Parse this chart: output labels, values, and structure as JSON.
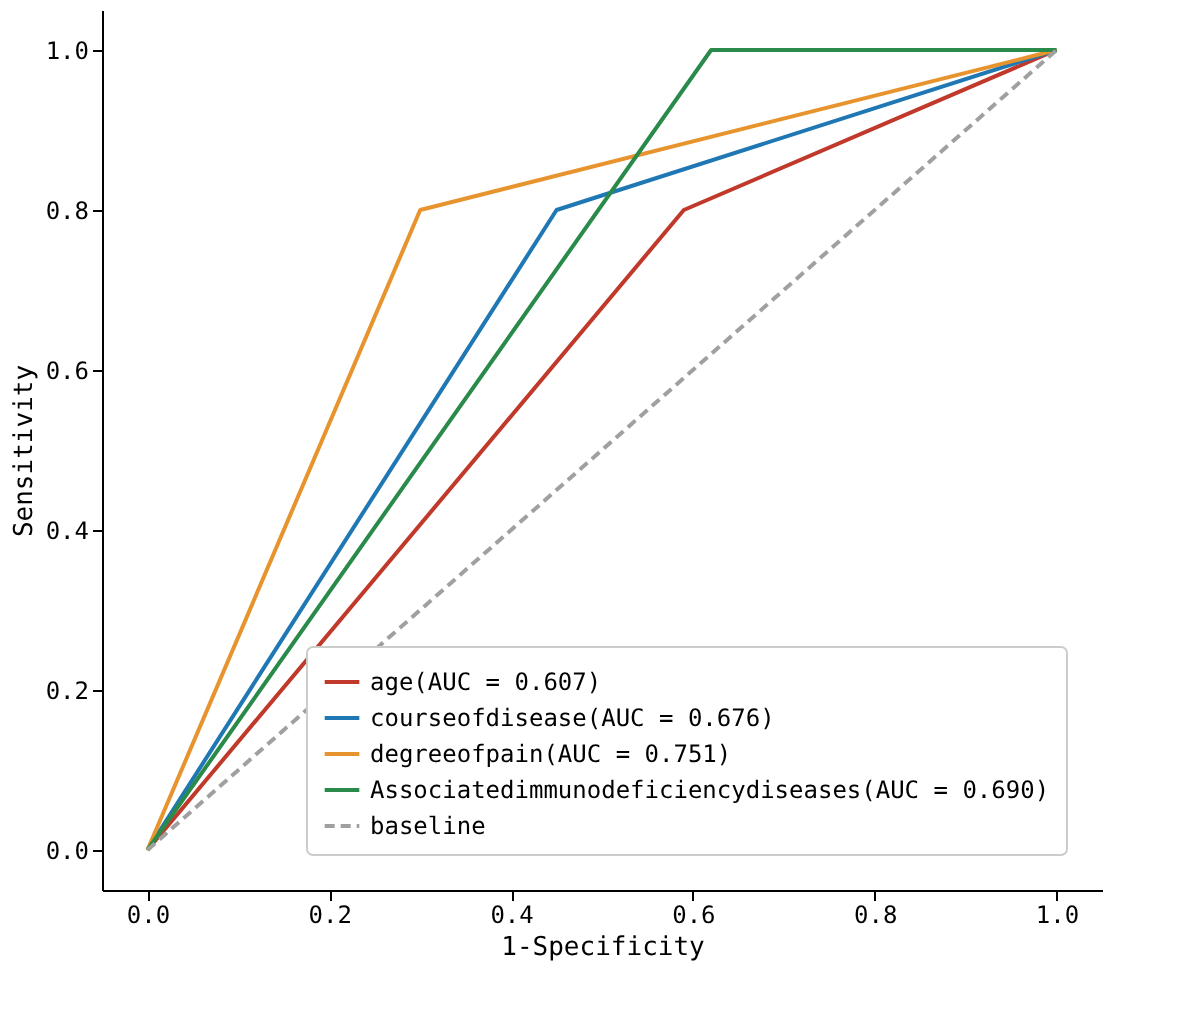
{
  "chart_data": {
    "type": "line",
    "xlabel": "1-Specificity",
    "ylabel": "Sensitivity",
    "xlim": [
      -0.05,
      1.05
    ],
    "ylim": [
      -0.05,
      1.05
    ],
    "xticks": [
      {
        "value": 0,
        "label": "0.0"
      },
      0.2,
      0.4,
      0.6,
      0.8,
      {
        "value": 1,
        "label": "1.0"
      }
    ],
    "yticks": [
      {
        "value": 0,
        "label": "0.0"
      },
      0.2,
      0.4,
      0.6,
      0.8,
      {
        "value": 1,
        "label": "1.0"
      }
    ],
    "grid": false,
    "legend": "bottom right",
    "marker": "none",
    "series": [
      {
        "name": "age(AUC = 0.607)",
        "color": "#c0392b",
        "line_style": "solid",
        "x": [
          0,
          0.59,
          1
        ],
        "values": [
          0,
          0.8,
          1
        ]
      },
      {
        "name": "courseofdisease(AUC = 0.676)",
        "color": "#1f77b4",
        "line_style": "solid",
        "x": [
          0,
          0.45,
          1
        ],
        "values": [
          0,
          0.8,
          1
        ]
      },
      {
        "name": "degreeofpain(AUC = 0.751)",
        "color": "#e8942e",
        "line_style": "solid",
        "x": [
          0,
          0.3,
          1
        ],
        "values": [
          0,
          0.8,
          1
        ]
      },
      {
        "name": "Associatedimmunodeficiencydiseases(AUC = 0.690)",
        "color": "#2a8a4a",
        "line_style": "solid",
        "x": [
          0,
          0.62,
          1
        ],
        "values": [
          0,
          1,
          1
        ]
      },
      {
        "name": "baseline",
        "color": "#a0a0a0",
        "line_style": "dashed",
        "x": [
          0,
          1
        ],
        "values": [
          0,
          1
        ]
      }
    ]
  }
}
